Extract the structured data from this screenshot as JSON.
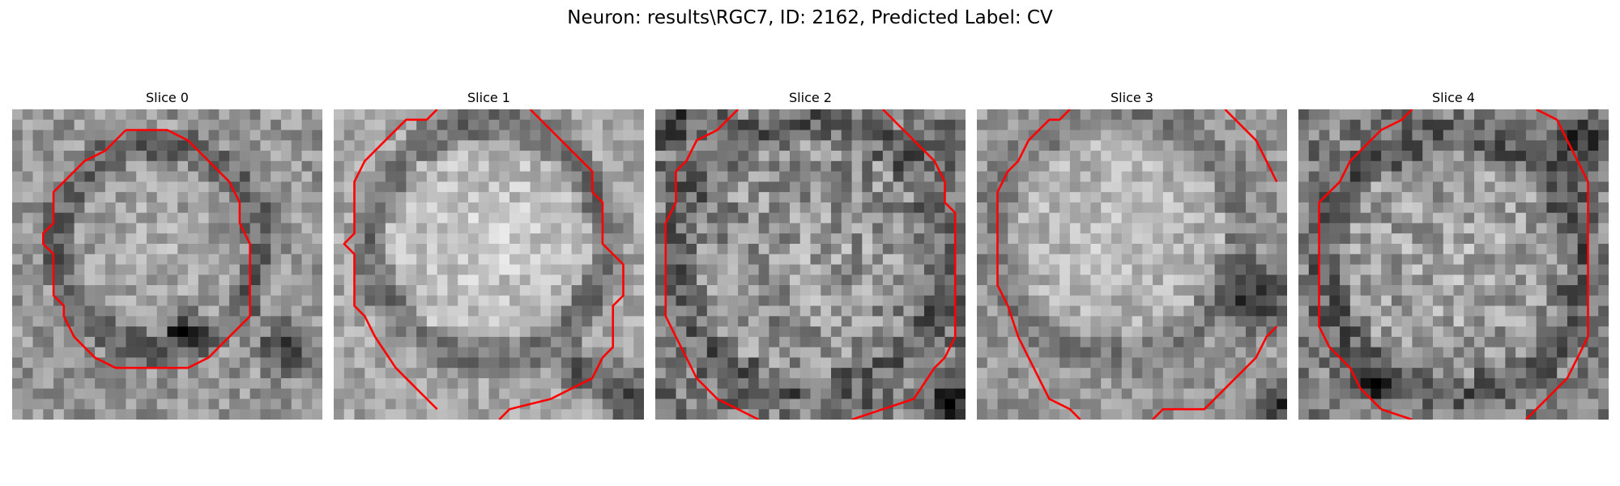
{
  "figure": {
    "title": "Neuron: results\\RGC7, ID: 2162, Predicted Label: CV"
  },
  "slices": [
    {
      "label": "Slice 0"
    },
    {
      "label": "Slice 1"
    },
    {
      "label": "Slice 2"
    },
    {
      "label": "Slice 3"
    },
    {
      "label": "Slice 4"
    }
  ],
  "colors": {
    "contour": "#ff0000",
    "background": "#ffffff",
    "text": "#000000"
  }
}
